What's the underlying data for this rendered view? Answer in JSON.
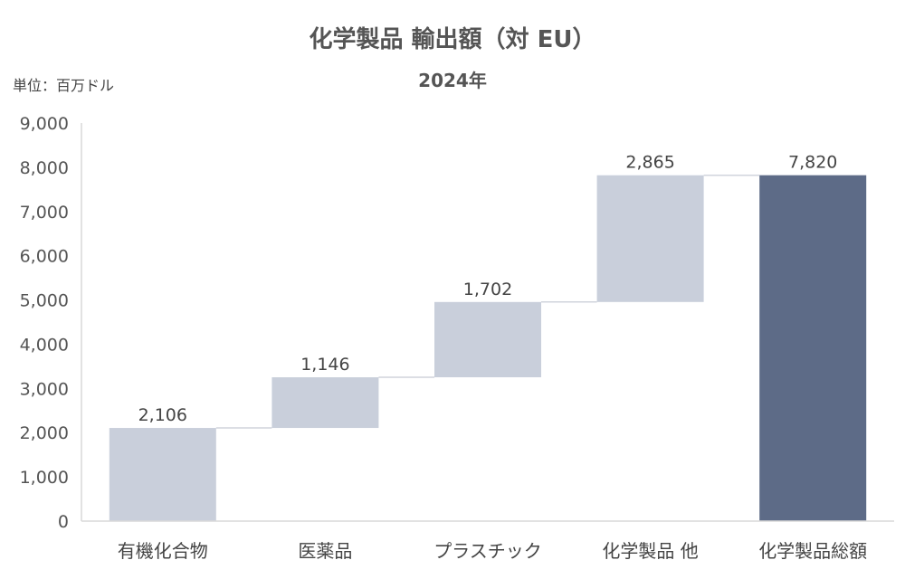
{
  "chart_data": {
    "type": "bar",
    "subtype": "waterfall",
    "title": "化学製品 輸出額（対 EU）",
    "subtitle": "2024年",
    "unit_label": "単位：百万ドル",
    "categories": [
      "有機化合物",
      "医薬品",
      "プラスチック",
      "化学製品 他",
      "化学製品総額"
    ],
    "values": [
      2106,
      1146,
      1702,
      2865,
      7820
    ],
    "value_labels": [
      "2,106",
      "1,146",
      "1,702",
      "2,865",
      "7,820"
    ],
    "is_total": [
      false,
      false,
      false,
      false,
      true
    ],
    "ylim": [
      0,
      9000
    ],
    "yticks": [
      0,
      1000,
      2000,
      3000,
      4000,
      5000,
      6000,
      7000,
      8000,
      9000
    ],
    "ytick_labels": [
      "0",
      "1,000",
      "2,000",
      "3,000",
      "4,000",
      "5,000",
      "6,000",
      "7,000",
      "8,000",
      "9,000"
    ],
    "xlabel": "",
    "ylabel": "",
    "grid": false,
    "colors": {
      "increment": "#c9cfdb",
      "total": "#5d6b87",
      "connector": "#d0d4dc",
      "axis": "#d9d9d9"
    }
  }
}
